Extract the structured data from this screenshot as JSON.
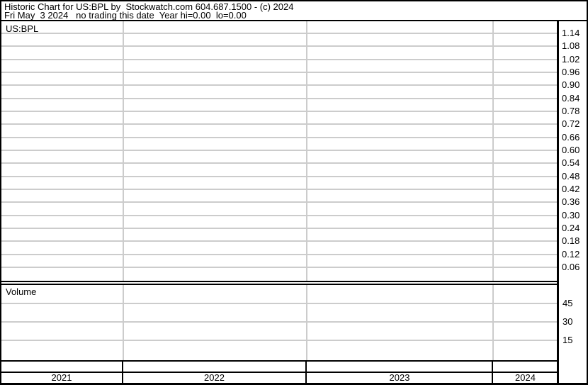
{
  "header": {
    "line1": "Historic Chart for US:BPL by  Stockwatch.com 604.687.1500 - (c) 2024",
    "line2": "Fri May  3 2024   no trading this date  Year hi=0.00  lo=0.00"
  },
  "price_panel": {
    "label": "US:BPL",
    "tick_labels": [
      "1.14",
      "1.08",
      "1.02",
      "0.96",
      "0.90",
      "0.84",
      "0.78",
      "0.72",
      "0.66",
      "0.60",
      "0.54",
      "0.48",
      "0.42",
      "0.36",
      "0.30",
      "0.24",
      "0.18",
      "0.12",
      "0.06"
    ]
  },
  "volume_panel": {
    "label": "Volume",
    "tick_labels": [
      "45",
      "30",
      "15"
    ]
  },
  "x_axis": {
    "year_labels": [
      "2021",
      "2022",
      "2023",
      "2024"
    ]
  },
  "colors": {
    "border": "#000000",
    "grid": "#cccccc",
    "text": "#000000",
    "background": "#ffffff"
  },
  "chart_data": {
    "type": "line",
    "title": "Historic Chart for US:BPL by Stockwatch.com 604.687.1500 - (c) 2024",
    "subtitle": "Fri May  3 2024   no trading this date  Year hi=0.00  lo=0.00",
    "symbol": "US:BPL",
    "note": "Empty chart - no trading data plotted (hi=0.00, lo=0.00)",
    "x_ticks": [
      "2021",
      "2022",
      "2023",
      "2024"
    ],
    "price_ticks": [
      1.14,
      1.08,
      1.02,
      0.96,
      0.9,
      0.84,
      0.78,
      0.72,
      0.66,
      0.6,
      0.54,
      0.48,
      0.42,
      0.36,
      0.3,
      0.24,
      0.18,
      0.12,
      0.06
    ],
    "price_ylim": [
      0.0,
      1.2
    ],
    "volume_ticks": [
      45,
      30,
      15
    ],
    "volume_ylim": [
      0,
      55
    ],
    "series": [
      {
        "name": "US:BPL price",
        "x": [],
        "values": []
      },
      {
        "name": "Volume",
        "x": [],
        "values": []
      }
    ],
    "grid": true,
    "legend": false,
    "axis_side": "right"
  }
}
